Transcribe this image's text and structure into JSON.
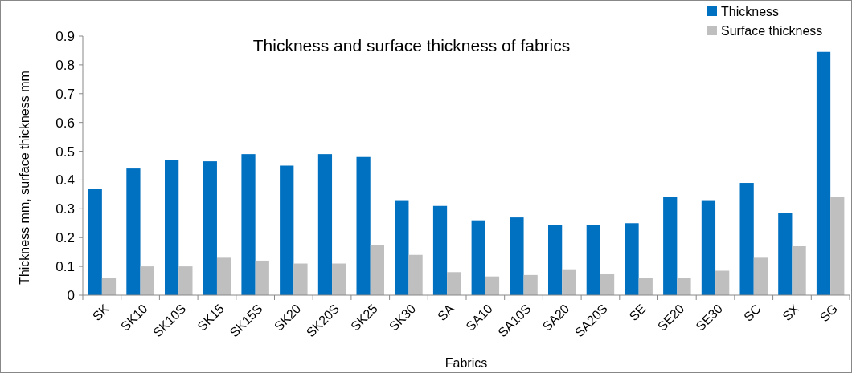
{
  "chart_data": {
    "type": "bar",
    "title": "Thickness and surface thickness of fabrics",
    "xlabel": "Fabrics",
    "ylabel": "Thickness mm, surface thickness mm",
    "categories": [
      "SK",
      "SK10",
      "SK10S",
      "SK15",
      "SK15S",
      "SK20",
      "SK20S",
      "SK25",
      "SK30",
      "SA",
      "SA10",
      "SA10S",
      "SA20",
      "SA20S",
      "SE",
      "SE20",
      "SE30",
      "SC",
      "SX",
      "SG"
    ],
    "series": [
      {
        "name": "Thickness",
        "color": "#0070c0",
        "values": [
          0.37,
          0.44,
          0.47,
          0.465,
          0.49,
          0.45,
          0.49,
          0.48,
          0.33,
          0.31,
          0.26,
          0.27,
          0.245,
          0.245,
          0.25,
          0.34,
          0.33,
          0.39,
          0.285,
          0.845
        ]
      },
      {
        "name": "Surface thickness",
        "color": "#bfbfbf",
        "values": [
          0.06,
          0.1,
          0.1,
          0.13,
          0.12,
          0.11,
          0.11,
          0.175,
          0.14,
          0.08,
          0.065,
          0.07,
          0.09,
          0.075,
          0.06,
          0.06,
          0.085,
          0.13,
          0.17,
          0.34
        ]
      }
    ],
    "ylim": [
      0,
      0.9
    ],
    "yticks": [
      0,
      0.1,
      0.2,
      0.3,
      0.4,
      0.5,
      0.6,
      0.7,
      0.8,
      0.9
    ],
    "legend": "top right"
  }
}
